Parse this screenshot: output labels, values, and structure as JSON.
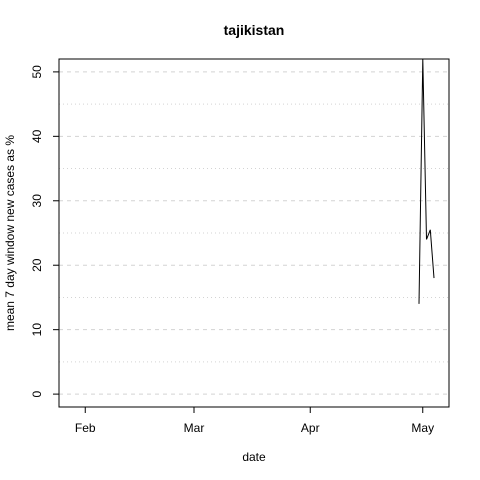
{
  "chart_data": {
    "type": "line",
    "title": "tajikistan",
    "xlabel": "date",
    "ylabel": "mean  7  day window new cases as %",
    "x_ticks": [
      "Feb",
      "Mar",
      "Apr",
      "May"
    ],
    "x_tick_dates": [
      "2020-02-01",
      "2020-03-01",
      "2020-04-01",
      "2020-05-01"
    ],
    "xlim": [
      "2020-01-25",
      "2020-05-08"
    ],
    "y_ticks": [
      0,
      10,
      20,
      30,
      40,
      50
    ],
    "ylim": [
      -2,
      52
    ],
    "grid": true,
    "series": [
      {
        "x": [
          "2020-04-30",
          "2020-05-01",
          "2020-05-02",
          "2020-05-03",
          "2020-05-04"
        ],
        "y": [
          14,
          52,
          24,
          25.5,
          18
        ]
      }
    ]
  }
}
